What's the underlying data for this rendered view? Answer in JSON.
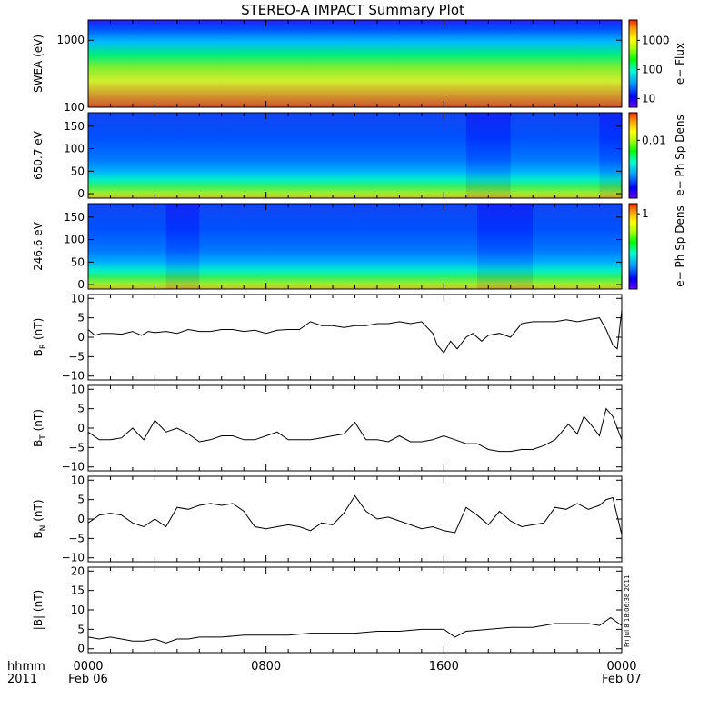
{
  "title": "STEREO-A IMPACT Summary Plot",
  "timestamp": "Fri Jul 8 18:06:38 2011",
  "colors": {
    "spectrogram_scale": [
      "#6a00ff",
      "#0000ff",
      "#00a0ff",
      "#00ffd0",
      "#00ff00",
      "#b0ff00",
      "#ffff00",
      "#ffa000",
      "#ff2000"
    ],
    "trace": "#000000",
    "background": "#ffffff"
  },
  "time_axis": {
    "ticks": [
      {
        "t": 0,
        "label": "0000"
      },
      {
        "t": 8,
        "label": "0800"
      },
      {
        "t": 16,
        "label": "1600"
      },
      {
        "t": 24,
        "label": "0000"
      }
    ],
    "row1_label": "hhmm",
    "row2_label": "2011",
    "date_start": "Feb 06",
    "date_end": "Feb 07",
    "range_hours": [
      0,
      24
    ]
  },
  "chart_data": [
    {
      "type": "heatmap",
      "ylabel": "SWEA (eV)",
      "ylim": [
        100,
        2000
      ],
      "yscale": "log",
      "yticks": [
        {
          "v": 100,
          "label": "100"
        },
        {
          "v": 1000,
          "label": "1000"
        }
      ],
      "colorbar": {
        "label": "e− Flux",
        "scale": "log",
        "range": [
          5,
          5000
        ],
        "ticks": [
          {
            "v": 10,
            "label": "10"
          },
          {
            "v": 100,
            "label": "100"
          },
          {
            "v": 1000,
            "label": "1000"
          }
        ]
      },
      "features": [
        {
          "t": 0,
          "level": 0.6
        },
        {
          "t": 2,
          "level": 0.52
        },
        {
          "t": 6,
          "level": 0.5
        },
        {
          "t": 10,
          "level": 0.5
        },
        {
          "t": 14,
          "level": 0.52
        },
        {
          "t": 16,
          "level": 0.54
        },
        {
          "t": 19,
          "level": 0.55
        },
        {
          "t": 22,
          "level": 0.55
        },
        {
          "t": 23.5,
          "level": 0.6
        }
      ]
    },
    {
      "type": "heatmap",
      "ylabel": "650.7 eV",
      "ylim": [
        -10,
        180
      ],
      "yticks": [
        {
          "v": 0,
          "label": "0"
        },
        {
          "v": 50,
          "label": "50"
        },
        {
          "v": 100,
          "label": "100"
        },
        {
          "v": 150,
          "label": "150"
        }
      ],
      "colorbar": {
        "label": "e− Ph Sp Dens",
        "scale": "log",
        "range": [
          0.001,
          0.03
        ],
        "ticks": [
          {
            "v": 0.01,
            "label": "0.01"
          }
        ]
      },
      "features": [
        {
          "t": 0,
          "level": 0.6
        },
        {
          "t": 1,
          "level": 0.55
        },
        {
          "t": 2.7,
          "level": 0.4
        },
        {
          "t": 4,
          "level": 0.55
        },
        {
          "t": 6,
          "level": 0.45
        },
        {
          "t": 9,
          "level": 0.5
        },
        {
          "t": 12,
          "level": 0.45
        },
        {
          "t": 15.5,
          "level": 0.5
        },
        {
          "t": 17,
          "level": 0.3
        },
        {
          "t": 19,
          "level": 0.4
        },
        {
          "t": 21,
          "level": 0.55
        },
        {
          "t": 23,
          "level": 0.35
        },
        {
          "t": 24,
          "level": 0.6
        }
      ]
    },
    {
      "type": "heatmap",
      "ylabel": "246.6 eV",
      "ylim": [
        -10,
        180
      ],
      "yticks": [
        {
          "v": 0,
          "label": "0"
        },
        {
          "v": 50,
          "label": "50"
        },
        {
          "v": 100,
          "label": "100"
        },
        {
          "v": 150,
          "label": "150"
        }
      ],
      "colorbar": {
        "label": "e− Ph Sp Dens",
        "scale": "log",
        "range": [
          0.05,
          1.5
        ],
        "ticks": [
          {
            "v": 1,
            "label": "1"
          }
        ]
      },
      "features": [
        {
          "t": 0,
          "level": 0.6
        },
        {
          "t": 2.5,
          "level": 0.55
        },
        {
          "t": 3.5,
          "level": 0.3
        },
        {
          "t": 5,
          "level": 0.45
        },
        {
          "t": 8,
          "level": 0.45
        },
        {
          "t": 12,
          "level": 0.45
        },
        {
          "t": 16,
          "level": 0.5
        },
        {
          "t": 17.5,
          "level": 0.25
        },
        {
          "t": 20,
          "level": 0.55
        },
        {
          "t": 22.5,
          "level": 0.4
        },
        {
          "t": 24,
          "level": 0.6
        }
      ]
    },
    {
      "type": "line",
      "ylabel_main": "B",
      "ylabel_sub": "R",
      "ylabel_unit": " (nT)",
      "ylim": [
        -11,
        11
      ],
      "yticks": [
        {
          "v": -10,
          "label": "−10"
        },
        {
          "v": -5,
          "label": "−5"
        },
        {
          "v": 0,
          "label": "0"
        },
        {
          "v": 5,
          "label": "5"
        },
        {
          "v": 10,
          "label": "10"
        }
      ],
      "x": [
        0,
        0.3,
        0.6,
        1,
        1.5,
        2,
        2.4,
        2.7,
        3,
        3.5,
        4,
        4.5,
        5,
        5.5,
        6,
        6.5,
        7,
        7.5,
        8,
        8.5,
        9,
        9.5,
        10,
        10.5,
        11,
        11.5,
        12,
        12.5,
        13,
        13.5,
        14,
        14.5,
        15,
        15.5,
        15.7,
        16,
        16.3,
        16.6,
        17,
        17.3,
        17.7,
        18,
        18.5,
        19,
        19.5,
        20,
        20.5,
        21,
        21.5,
        22,
        22.5,
        23,
        23.3,
        23.6,
        23.8,
        24
      ],
      "y": [
        2,
        0.5,
        1,
        1,
        0.8,
        1.5,
        0.5,
        1.5,
        1.2,
        1.5,
        1,
        2,
        1.5,
        1.5,
        2,
        2,
        1.5,
        1.8,
        1,
        1.8,
        2,
        2,
        4,
        3,
        3,
        2.5,
        3,
        3,
        3.5,
        3.5,
        4,
        3.5,
        4,
        1,
        -2,
        -4,
        -1,
        -3,
        0,
        1,
        -1,
        0.5,
        1,
        0,
        3.5,
        4,
        4,
        4,
        4.5,
        4,
        4.5,
        5,
        2,
        -2,
        -3,
        7
      ]
    },
    {
      "type": "line",
      "ylabel_main": "B",
      "ylabel_sub": "T",
      "ylabel_unit": " (nT)",
      "ylim": [
        -11,
        11
      ],
      "yticks": [
        {
          "v": -10,
          "label": "−10"
        },
        {
          "v": -5,
          "label": "−5"
        },
        {
          "v": 0,
          "label": "0"
        },
        {
          "v": 5,
          "label": "5"
        },
        {
          "v": 10,
          "label": "10"
        }
      ],
      "x": [
        0,
        0.5,
        1,
        1.5,
        2,
        2.5,
        3,
        3.5,
        4,
        4.5,
        5,
        5.5,
        6,
        6.5,
        7,
        7.5,
        8,
        8.5,
        9,
        9.5,
        10,
        10.5,
        11,
        11.5,
        12,
        12.5,
        13,
        13.5,
        14,
        14.5,
        15,
        15.5,
        16,
        16.5,
        17,
        17.5,
        18,
        18.5,
        19,
        19.5,
        20,
        20.5,
        21,
        21.3,
        21.6,
        22,
        22.3,
        22.6,
        23,
        23.3,
        23.6,
        24
      ],
      "y": [
        -1,
        -3,
        -3,
        -2.5,
        0,
        -3,
        2,
        -1,
        0,
        -1.5,
        -3.5,
        -3,
        -2,
        -2,
        -3,
        -3,
        -2,
        -1,
        -3,
        -3,
        -3,
        -2.5,
        -2,
        -1.5,
        1.5,
        -3,
        -3,
        -3.5,
        -2,
        -3.5,
        -3.5,
        -3,
        -2,
        -3,
        -4,
        -4,
        -5.5,
        -6,
        -6,
        -5.5,
        -5.5,
        -4.5,
        -3,
        -1,
        1,
        -1.5,
        3,
        1,
        -2,
        5,
        3,
        -3
      ]
    },
    {
      "type": "line",
      "ylabel_main": "B",
      "ylabel_sub": "N",
      "ylabel_unit": " (nT)",
      "ylim": [
        -11,
        11
      ],
      "yticks": [
        {
          "v": -10,
          "label": "−10"
        },
        {
          "v": -5,
          "label": "−5"
        },
        {
          "v": 0,
          "label": "0"
        },
        {
          "v": 5,
          "label": "5"
        },
        {
          "v": 10,
          "label": "10"
        }
      ],
      "x": [
        0,
        0.5,
        1,
        1.5,
        2,
        2.5,
        3,
        3.5,
        4,
        4.5,
        5,
        5.5,
        6,
        6.5,
        7,
        7.5,
        8,
        8.5,
        9,
        9.5,
        10,
        10.5,
        11,
        11.5,
        12,
        12.5,
        13,
        13.5,
        14,
        14.5,
        15,
        15.5,
        16,
        16.5,
        17,
        17.5,
        18,
        18.5,
        19,
        19.5,
        20,
        20.5,
        21,
        21.5,
        22,
        22.5,
        23,
        23.3,
        23.6,
        24
      ],
      "y": [
        -1,
        1,
        1.5,
        1,
        -1,
        -2,
        0,
        -2,
        3,
        2.5,
        3.5,
        4,
        3.5,
        4,
        2,
        -2,
        -2.5,
        -2,
        -1.5,
        -2,
        -3,
        -1,
        -1.5,
        1.5,
        6,
        2,
        0,
        0.5,
        -0.5,
        -1.5,
        -2.5,
        -2,
        -3,
        -3.5,
        3,
        1,
        -1.5,
        2,
        -0.5,
        -2,
        -1.5,
        -1,
        3,
        2.5,
        4,
        2.5,
        3.5,
        5,
        5.5,
        -4
      ]
    },
    {
      "type": "line",
      "ylabel_main": "|B|",
      "ylabel_sub": "",
      "ylabel_unit": " (nT)",
      "ylim": [
        -1,
        21
      ],
      "yticks": [
        {
          "v": 0,
          "label": "0"
        },
        {
          "v": 5,
          "label": "5"
        },
        {
          "v": 10,
          "label": "10"
        },
        {
          "v": 15,
          "label": "15"
        },
        {
          "v": 20,
          "label": "20"
        }
      ],
      "x": [
        0,
        0.5,
        1,
        1.5,
        2,
        2.5,
        3,
        3.5,
        4,
        4.5,
        5,
        6,
        7,
        8,
        9,
        10,
        11,
        12,
        13,
        14,
        15,
        15.5,
        16,
        16.5,
        17,
        18,
        19,
        20,
        21,
        22,
        22.5,
        23,
        23.5,
        24
      ],
      "y": [
        3,
        2.5,
        3,
        2.5,
        2,
        2,
        2.5,
        1.5,
        2.5,
        2.5,
        3,
        3,
        3.5,
        3.5,
        3.5,
        4,
        4,
        4,
        4.5,
        4.5,
        5,
        5,
        5,
        3,
        4.5,
        5,
        5.5,
        5.5,
        6.5,
        6.5,
        6.5,
        6,
        8,
        6
      ]
    }
  ]
}
